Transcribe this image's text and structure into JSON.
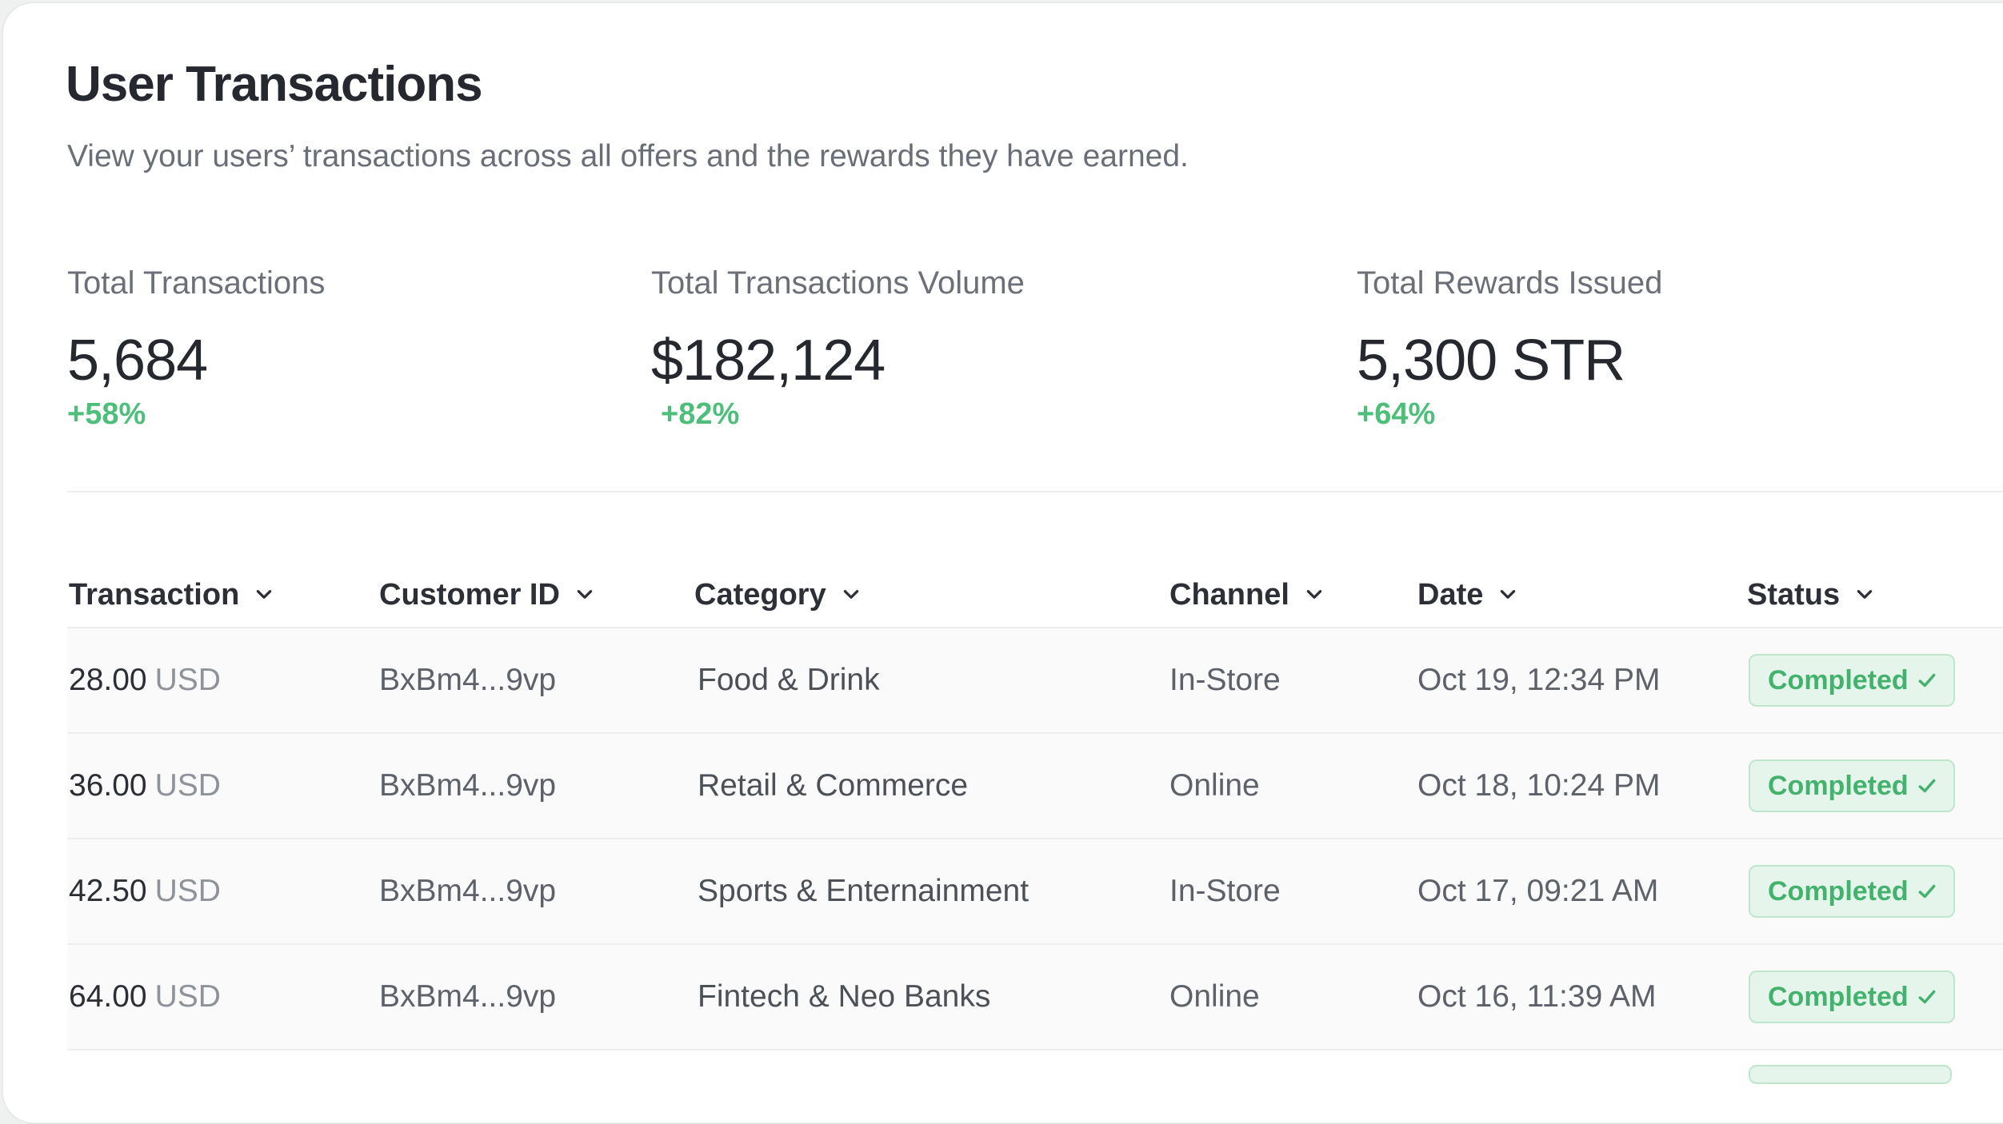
{
  "page": {
    "title": "User Transactions",
    "subtitle": "View your users’ transactions across all offers and the rewards they have earned."
  },
  "metrics": [
    {
      "label": "Total Transactions",
      "value": "5,684",
      "change": "+58%"
    },
    {
      "label": "Total Transactions Volume",
      "value": "$182,124",
      "change": "+82%"
    },
    {
      "label": "Total Rewards Issued",
      "value": "5,300 STR",
      "change": "+64%"
    }
  ],
  "table": {
    "columns": [
      {
        "label": "Transaction",
        "icon": "chevron-down-icon"
      },
      {
        "label": "Customer ID",
        "icon": "chevron-down-icon"
      },
      {
        "label": "Category",
        "icon": "chevron-down-icon"
      },
      {
        "label": "Channel",
        "icon": "chevron-down-icon"
      },
      {
        "label": "Date",
        "icon": "chevron-down-icon"
      },
      {
        "label": "Status",
        "icon": "chevron-down-icon"
      }
    ],
    "rows": [
      {
        "amount": "28.00",
        "currency": "USD",
        "customer_id": "BxBm4...9vp",
        "category": "Food & Drink",
        "channel": "In-Store",
        "date": "Oct 19, 12:34 PM",
        "status": "Completed"
      },
      {
        "amount": "36.00",
        "currency": "USD",
        "customer_id": "BxBm4...9vp",
        "category": "Retail & Commerce",
        "channel": "Online",
        "date": "Oct 18, 10:24 PM",
        "status": "Completed"
      },
      {
        "amount": "42.50",
        "currency": "USD",
        "customer_id": "BxBm4...9vp",
        "category": "Sports & Enternainment",
        "channel": "In-Store",
        "date": "Oct 17, 09:21 AM",
        "status": "Completed"
      },
      {
        "amount": "64.00",
        "currency": "USD",
        "customer_id": "BxBm4...9vp",
        "category": "Fintech & Neo Banks",
        "channel": "Online",
        "date": "Oct 16, 11:39 AM",
        "status": "Completed"
      }
    ]
  },
  "colors": {
    "accent_green": "#4dbf7a",
    "badge_bg": "#e5f5eb",
    "badge_border": "#bfe6cd"
  }
}
